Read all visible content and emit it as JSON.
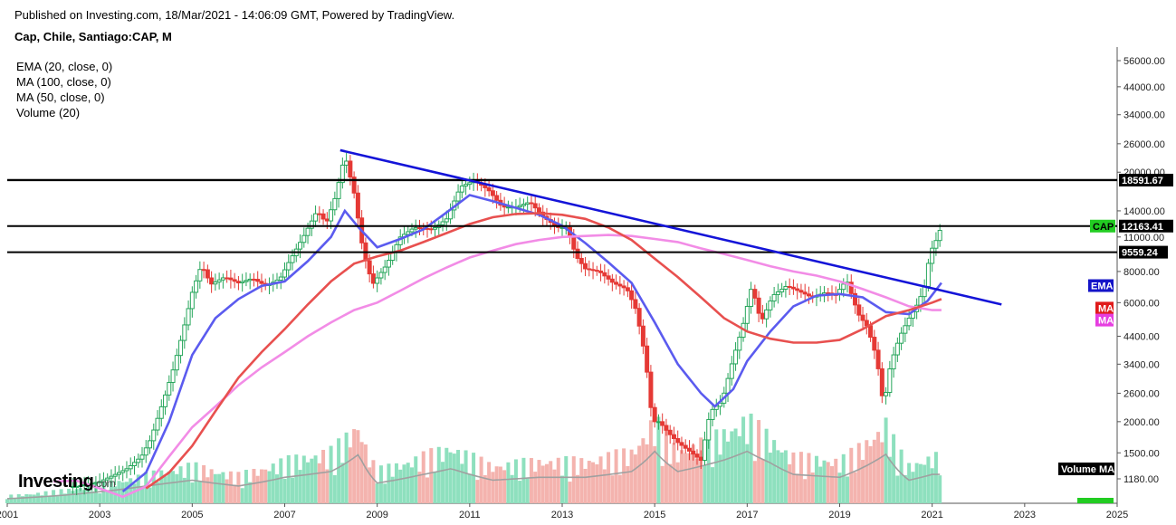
{
  "header": {
    "published": "Published on Investing.com, 18/Mar/2021 - 14:06:09 GMT, Powered by TradingView.",
    "symbol": "Cap, Chile, Santiago:CAP, M"
  },
  "indicators": [
    "EMA (20, close, 0)",
    "MA (100, close, 0)",
    "MA (50, close, 0)",
    "Volume (20)"
  ],
  "logo": {
    "main": "Investing",
    "sub": ".com"
  },
  "colors": {
    "up": "#26a65b",
    "down": "#e53935",
    "ema": "#5b5bef",
    "ma100": "#f28ce6",
    "ma50": "#e8504f",
    "trend": "#1414d8",
    "level": "#000000",
    "vol_up": "#8ee0be",
    "vol_down": "#f4b3ae",
    "vol_ma": "#a0a0a0",
    "cap": "#22cc22"
  },
  "chart_data": {
    "type": "candlestick",
    "title": "Cap, Chile, Santiago:CAP, M",
    "y_scale": "log",
    "y_ticks": [
      "56000.00",
      "44000.00",
      "34000.00",
      "26000.00",
      "20000.00",
      "14000.00",
      "11000.00",
      "8000.00",
      "6000.00",
      "4400.00",
      "3400.00",
      "2600.00",
      "2000.00",
      "1500.00",
      "1180.00"
    ],
    "x_ticks": [
      "2001",
      "2003",
      "2005",
      "2007",
      "2009",
      "2011",
      "2013",
      "2015",
      "2017",
      "2019",
      "2021",
      "2023",
      "2025"
    ],
    "last_price": 12163.41,
    "price_labels": [
      {
        "text": "CAP",
        "series": "last"
      },
      {
        "text": "12163.41",
        "series": "last"
      },
      {
        "text": "18591.67",
        "series": "level"
      },
      {
        "text": "9559.24",
        "series": "level"
      },
      {
        "text": "EMA",
        "series": "ema"
      },
      {
        "text": "MA",
        "series": "ma50"
      },
      {
        "text": "MA",
        "series": "ma100"
      }
    ],
    "volume_label": "Volume MA",
    "horizontal_levels": [
      18591.67,
      12163.41,
      9559.24
    ],
    "trendline": [
      [
        2008.2,
        24500
      ],
      [
        2022.5,
        5900
      ]
    ],
    "price_path": [
      [
        2002.5,
        1100
      ],
      [
        2003.0,
        1150
      ],
      [
        2003.3,
        1220
      ],
      [
        2003.6,
        1300
      ],
      [
        2003.9,
        1450
      ],
      [
        2004.1,
        1700
      ],
      [
        2004.4,
        2500
      ],
      [
        2004.6,
        3300
      ],
      [
        2004.8,
        4600
      ],
      [
        2005.0,
        6600
      ],
      [
        2005.2,
        8500
      ],
      [
        2005.4,
        7100
      ],
      [
        2005.7,
        7600
      ],
      [
        2006.0,
        7200
      ],
      [
        2006.3,
        7500
      ],
      [
        2006.6,
        7000
      ],
      [
        2006.9,
        7500
      ],
      [
        2007.1,
        8800
      ],
      [
        2007.4,
        11000
      ],
      [
        2007.7,
        14000
      ],
      [
        2007.9,
        12500
      ],
      [
        2008.1,
        16000
      ],
      [
        2008.3,
        23500
      ],
      [
        2008.5,
        16500
      ],
      [
        2008.7,
        9500
      ],
      [
        2008.9,
        7100
      ],
      [
        2009.2,
        8500
      ],
      [
        2009.5,
        11000
      ],
      [
        2009.8,
        12000
      ],
      [
        2010.2,
        11800
      ],
      [
        2010.5,
        13000
      ],
      [
        2010.8,
        17500
      ],
      [
        2011.1,
        18500
      ],
      [
        2011.4,
        17000
      ],
      [
        2011.7,
        14500
      ],
      [
        2012.0,
        14500
      ],
      [
        2012.3,
        15200
      ],
      [
        2012.6,
        13200
      ],
      [
        2012.9,
        12000
      ],
      [
        2013.1,
        12000
      ],
      [
        2013.3,
        9200
      ],
      [
        2013.5,
        8200
      ],
      [
        2013.8,
        8000
      ],
      [
        2014.1,
        7200
      ],
      [
        2014.4,
        6800
      ],
      [
        2014.6,
        5600
      ],
      [
        2014.8,
        3600
      ],
      [
        2014.95,
        2000
      ],
      [
        2015.1,
        2000
      ],
      [
        2015.3,
        1800
      ],
      [
        2015.5,
        1650
      ],
      [
        2015.8,
        1500
      ],
      [
        2016.0,
        1400
      ],
      [
        2016.2,
        2200
      ],
      [
        2016.45,
        2400
      ],
      [
        2016.7,
        3600
      ],
      [
        2016.9,
        4800
      ],
      [
        2017.1,
        7000
      ],
      [
        2017.3,
        5000
      ],
      [
        2017.55,
        6400
      ],
      [
        2017.85,
        7000
      ],
      [
        2018.1,
        6700
      ],
      [
        2018.4,
        6300
      ],
      [
        2018.7,
        6600
      ],
      [
        2018.9,
        6400
      ],
      [
        2019.15,
        7400
      ],
      [
        2019.4,
        5400
      ],
      [
        2019.6,
        4800
      ],
      [
        2019.8,
        3600
      ],
      [
        2019.95,
        2300
      ],
      [
        2020.1,
        3400
      ],
      [
        2020.3,
        4400
      ],
      [
        2020.5,
        5200
      ],
      [
        2020.7,
        6000
      ],
      [
        2020.85,
        7100
      ],
      [
        2020.95,
        9500
      ],
      [
        2021.1,
        10800
      ],
      [
        2021.2,
        12163.41
      ]
    ],
    "series": [
      {
        "name": "EMA (20, close, 0)",
        "points": [
          [
            2003.5,
            1050
          ],
          [
            2004.0,
            1250
          ],
          [
            2004.5,
            2000
          ],
          [
            2005.0,
            3700
          ],
          [
            2005.5,
            5200
          ],
          [
            2006.0,
            6200
          ],
          [
            2006.5,
            7000
          ],
          [
            2007.0,
            7300
          ],
          [
            2007.5,
            8800
          ],
          [
            2008.0,
            11000
          ],
          [
            2008.3,
            14000
          ],
          [
            2008.6,
            12000
          ],
          [
            2009.0,
            10000
          ],
          [
            2009.5,
            10800
          ],
          [
            2010.0,
            11800
          ],
          [
            2010.5,
            13800
          ],
          [
            2011.0,
            16200
          ],
          [
            2011.5,
            15300
          ],
          [
            2012.0,
            14400
          ],
          [
            2012.5,
            13500
          ],
          [
            2013.0,
            12200
          ],
          [
            2013.5,
            10400
          ],
          [
            2014.0,
            8700
          ],
          [
            2014.5,
            7200
          ],
          [
            2015.0,
            5000
          ],
          [
            2015.5,
            3400
          ],
          [
            2016.0,
            2600
          ],
          [
            2016.3,
            2300
          ],
          [
            2016.7,
            2700
          ],
          [
            2017.0,
            3500
          ],
          [
            2017.5,
            4600
          ],
          [
            2018.0,
            5800
          ],
          [
            2018.5,
            6400
          ],
          [
            2019.0,
            6500
          ],
          [
            2019.5,
            6300
          ],
          [
            2020.0,
            5500
          ],
          [
            2020.5,
            5400
          ],
          [
            2020.9,
            6100
          ],
          [
            2021.2,
            7200
          ]
        ]
      },
      {
        "name": "MA (100, close, 0)",
        "points": [
          [
            2002.0,
            1150
          ],
          [
            2002.5,
            1160
          ],
          [
            2003.0,
            1080
          ],
          [
            2003.5,
            1000
          ],
          [
            2004.0,
            1100
          ],
          [
            2004.5,
            1450
          ],
          [
            2005.0,
            1900
          ],
          [
            2005.5,
            2300
          ],
          [
            2006.0,
            2800
          ],
          [
            2006.5,
            3300
          ],
          [
            2007.0,
            3800
          ],
          [
            2007.5,
            4400
          ],
          [
            2008.0,
            5000
          ],
          [
            2008.5,
            5600
          ],
          [
            2009.0,
            6000
          ],
          [
            2009.5,
            6700
          ],
          [
            2010.0,
            7500
          ],
          [
            2010.5,
            8300
          ],
          [
            2011.0,
            9100
          ],
          [
            2011.5,
            9700
          ],
          [
            2012.0,
            10300
          ],
          [
            2012.5,
            10700
          ],
          [
            2013.0,
            11000
          ],
          [
            2013.5,
            11100
          ],
          [
            2014.0,
            11200
          ],
          [
            2014.5,
            11100
          ],
          [
            2015.0,
            10800
          ],
          [
            2015.5,
            10500
          ],
          [
            2016.0,
            9900
          ],
          [
            2016.5,
            9400
          ],
          [
            2017.0,
            8900
          ],
          [
            2017.5,
            8400
          ],
          [
            2018.0,
            8000
          ],
          [
            2018.5,
            7700
          ],
          [
            2019.0,
            7300
          ],
          [
            2019.5,
            6800
          ],
          [
            2020.0,
            6300
          ],
          [
            2020.5,
            5800
          ],
          [
            2021.0,
            5600
          ],
          [
            2021.2,
            5600
          ]
        ]
      },
      {
        "name": "MA (50, close, 0)",
        "points": [
          [
            2004.0,
            1080
          ],
          [
            2004.5,
            1250
          ],
          [
            2005.0,
            1600
          ],
          [
            2005.5,
            2200
          ],
          [
            2006.0,
            3000
          ],
          [
            2006.5,
            3800
          ],
          [
            2007.0,
            4700
          ],
          [
            2007.5,
            5900
          ],
          [
            2008.0,
            7300
          ],
          [
            2008.5,
            8600
          ],
          [
            2009.0,
            9200
          ],
          [
            2009.5,
            9700
          ],
          [
            2010.0,
            10500
          ],
          [
            2010.5,
            11400
          ],
          [
            2011.0,
            12400
          ],
          [
            2011.5,
            13200
          ],
          [
            2012.0,
            13600
          ],
          [
            2012.5,
            13700
          ],
          [
            2013.0,
            13500
          ],
          [
            2013.5,
            13000
          ],
          [
            2014.0,
            12000
          ],
          [
            2014.5,
            10700
          ],
          [
            2015.0,
            9000
          ],
          [
            2015.5,
            7600
          ],
          [
            2016.0,
            6300
          ],
          [
            2016.5,
            5200
          ],
          [
            2017.0,
            4600
          ],
          [
            2017.5,
            4300
          ],
          [
            2018.0,
            4150
          ],
          [
            2018.5,
            4150
          ],
          [
            2019.0,
            4250
          ],
          [
            2019.5,
            4700
          ],
          [
            2020.0,
            5300
          ],
          [
            2020.5,
            5600
          ],
          [
            2021.0,
            6000
          ],
          [
            2021.2,
            6200
          ]
        ]
      }
    ],
    "volume_peaks": [
      [
        2003.0,
        0.2
      ],
      [
        2004.0,
        0.3
      ],
      [
        2004.5,
        0.35
      ],
      [
        2005.0,
        0.4
      ],
      [
        2006.0,
        0.3
      ],
      [
        2007.0,
        0.45
      ],
      [
        2008.0,
        0.55
      ],
      [
        2008.6,
        0.85
      ],
      [
        2009.0,
        0.35
      ],
      [
        2010.0,
        0.5
      ],
      [
        2010.6,
        0.6
      ],
      [
        2011.5,
        0.4
      ],
      [
        2012.5,
        0.45
      ],
      [
        2013.5,
        0.45
      ],
      [
        2014.5,
        0.55
      ],
      [
        2015.0,
        0.9
      ],
      [
        2015.5,
        0.55
      ],
      [
        2016.5,
        0.75
      ],
      [
        2017.0,
        0.9
      ],
      [
        2017.5,
        0.7
      ],
      [
        2018.0,
        0.5
      ],
      [
        2019.0,
        0.45
      ],
      [
        2020.0,
        0.85
      ],
      [
        2020.5,
        0.4
      ],
      [
        2021.0,
        0.5
      ]
    ]
  }
}
